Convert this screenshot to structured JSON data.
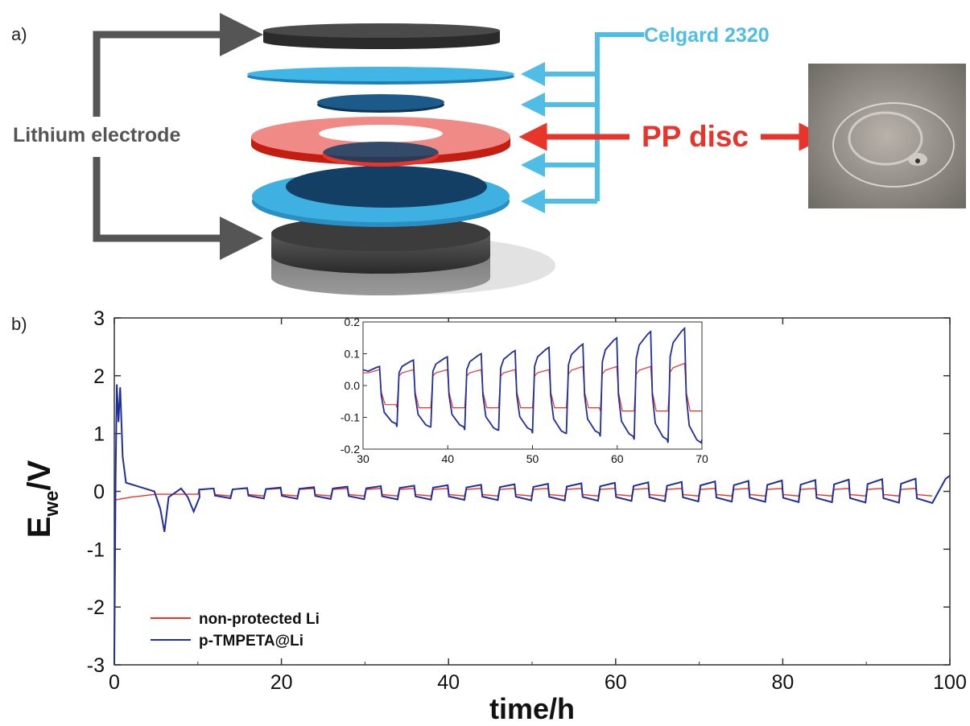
{
  "panel_a": {
    "label": "a)",
    "left_label": "Lithium electrode",
    "right_top_label": "Celgard 2320",
    "pp_label": "PP disc",
    "colors": {
      "electrode_arrow": "#555555",
      "celgard": "#4fbde6",
      "pp": "#e8352b",
      "lithium": "#3a3a3a",
      "separator_blue": "#2e9fd8",
      "separator_dark": "#123f63"
    }
  },
  "panel_b": {
    "label": "b)",
    "chart_data": {
      "type": "line",
      "xlabel": "time/h",
      "ylabel_main": "E",
      "ylabel_sub": "we",
      "ylabel_tail": "/V",
      "xlim": [
        0,
        100
      ],
      "ylim": [
        -3,
        3
      ],
      "xticks": [
        "0",
        "20",
        "40",
        "60",
        "80",
        "100"
      ],
      "yticks": [
        "3",
        "2",
        "1",
        "0",
        "-1",
        "-2",
        "-3"
      ],
      "legend_position": "bottom-left",
      "series": [
        {
          "name": "non-protected Li",
          "color": "#e8352b"
        },
        {
          "name": "p-TMPETA@Li",
          "color": "#1f2f9c"
        }
      ],
      "inset": {
        "type": "line",
        "xlim": [
          30,
          70
        ],
        "ylim": [
          -0.2,
          0.2
        ],
        "xticks": [
          "30",
          "40",
          "50",
          "60",
          "70"
        ],
        "yticks": [
          "0.2",
          "0.1",
          "0.0",
          "-0.1",
          "-0.2"
        ],
        "cycles_start_h": 30,
        "cycle_period_h": 4,
        "p_TMPETA_high_V": [
          0.06,
          0.08,
          0.09,
          0.1,
          0.11,
          0.12,
          0.13,
          0.15,
          0.17,
          0.18
        ],
        "p_TMPETA_low_V": [
          -0.12,
          -0.13,
          -0.13,
          -0.14,
          -0.14,
          -0.15,
          -0.15,
          -0.16,
          -0.17,
          -0.18
        ],
        "non_protected_high_V": [
          0.05,
          0.05,
          0.05,
          0.05,
          0.05,
          0.05,
          0.06,
          0.06,
          0.06,
          0.07
        ],
        "non_protected_low_V": [
          -0.06,
          -0.07,
          -0.07,
          -0.07,
          -0.07,
          -0.07,
          -0.07,
          -0.08,
          -0.08,
          -0.08
        ]
      },
      "main": {
        "p_TMPETA_peak_V": 1.85,
        "p_TMPETA_initial_V": -3.0,
        "p_TMPETA_dip1": {
          "t": 6,
          "V": -0.7
        },
        "p_TMPETA_dip2": {
          "t": 9.5,
          "V": -0.35
        },
        "non_protected_initial_V": -0.15,
        "cycle_start_h": 10,
        "cycle_period_h": 4,
        "p_TMPETA_high_start_V": 0.05,
        "p_TMPETA_high_end_V": 0.22,
        "p_TMPETA_low_start_V": -0.12,
        "p_TMPETA_low_end_V": -0.2,
        "non_protected_high_V": 0.05,
        "non_protected_low_V": -0.08
      }
    }
  }
}
